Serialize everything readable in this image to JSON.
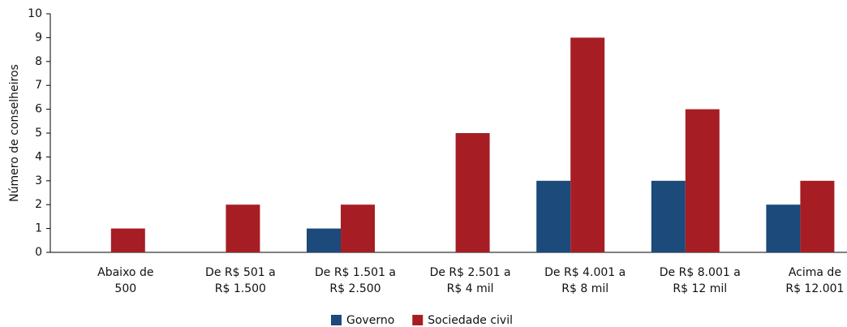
{
  "chart_data": {
    "type": "bar",
    "ylabel": "Número de conselheiros",
    "categories": [
      "Abaixo de\n500",
      "De R$ 501 a\nR$ 1.500",
      "De R$ 1.501 a\nR$ 2.500",
      "De R$ 2.501 a\nR$ 4 mil",
      "De R$ 4.001 a\nR$ 8 mil",
      "De R$ 8.001 a\nR$ 12 mil",
      "Acima de\nR$ 12.001"
    ],
    "series": [
      {
        "name": "Governo",
        "color": "#1b4a7b",
        "values": [
          0,
          0,
          1,
          0,
          3,
          3,
          2
        ]
      },
      {
        "name": "Sociedade civil",
        "color": "#a61e24",
        "values": [
          1,
          2,
          2,
          5,
          9,
          6,
          3
        ]
      }
    ],
    "ylim": [
      0,
      10
    ],
    "yticks": [
      0,
      1,
      2,
      3,
      4,
      5,
      6,
      7,
      8,
      9,
      10
    ],
    "legend": "bottom"
  }
}
